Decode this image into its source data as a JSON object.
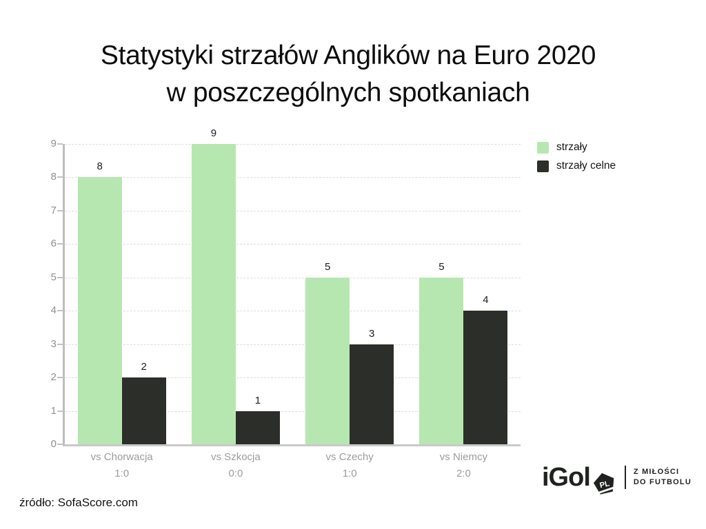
{
  "title": {
    "line1": "Statystyki strzałów Anglików na Euro 2020",
    "line2": "w poszczególnych spotkaniach"
  },
  "chart_data": {
    "type": "bar",
    "categories": [
      "vs Chorwacja",
      "vs Szkocja",
      "vs Czechy",
      "vs Niemcy"
    ],
    "category_scores": [
      "1:0",
      "0:0",
      "1:0",
      "2:0"
    ],
    "series": [
      {
        "name": "strzały",
        "color": "#b7e7b0",
        "values": [
          8,
          9,
          5,
          5
        ]
      },
      {
        "name": "strzały celne",
        "color": "#2c2e2a",
        "values": [
          2,
          1,
          3,
          4
        ]
      }
    ],
    "ylim": [
      0,
      9
    ],
    "yticks": [
      0,
      1,
      2,
      3,
      4,
      5,
      6,
      7,
      8,
      9
    ],
    "grid": "horizontal-dashed",
    "legend_position": "top-right",
    "bar_value_labels": true
  },
  "source": "źródło: SofaScore.com",
  "logo": {
    "brand": "iGol",
    "badge": "PL",
    "tagline_line1": "Z MIŁOŚCI",
    "tagline_line2": "DO FUTBOLU"
  }
}
